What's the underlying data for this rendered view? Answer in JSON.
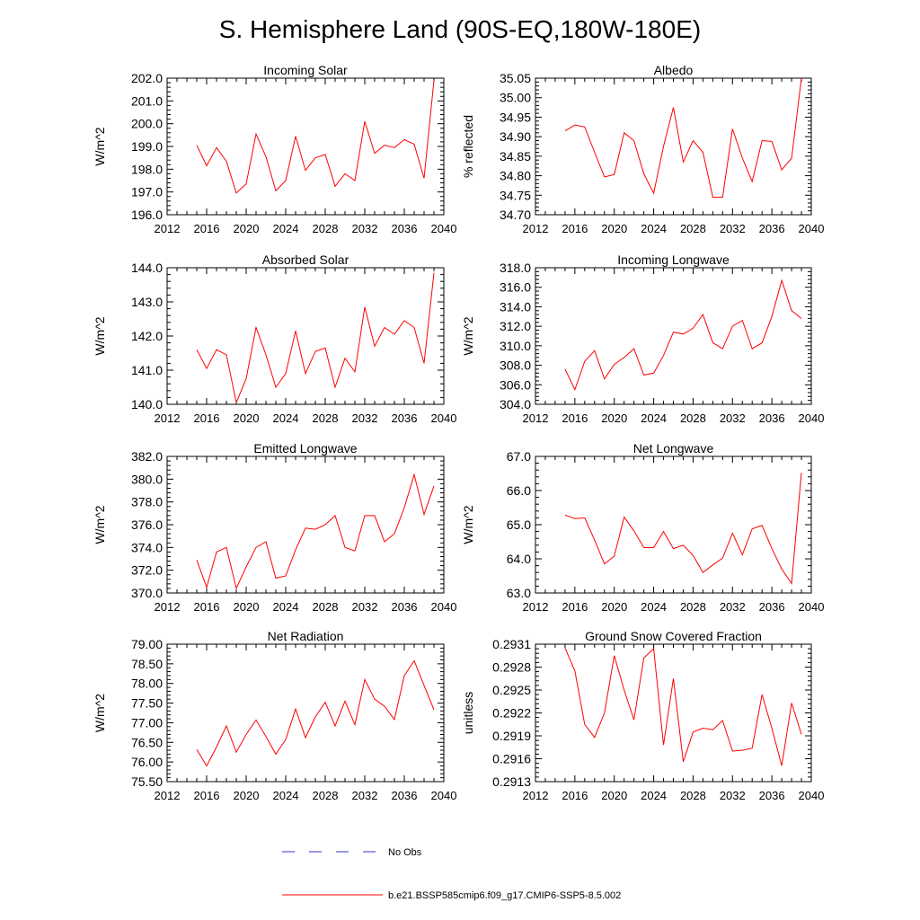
{
  "figure": {
    "title": "S. Hemisphere Land (90S-EQ,180W-180E)",
    "legend": [
      {
        "label": "No Obs",
        "color": "#3333cc",
        "dash": "dashed"
      },
      {
        "label": "b.e21.BSSP585cmip6.f09_g17.CMIP6-SSP5-8.5.002",
        "color": "#ff0000",
        "dash": "solid"
      }
    ]
  },
  "chart_data": [
    {
      "type": "line",
      "title": "Incoming Solar",
      "ylabel": "W/m^2",
      "xlabel": "",
      "xlim": [
        2012,
        2040
      ],
      "ylim": [
        196.0,
        202.0
      ],
      "xticks": [
        2012,
        2016,
        2020,
        2024,
        2028,
        2032,
        2036,
        2040
      ],
      "yticks": [
        "196.0",
        "197.0",
        "198.0",
        "199.0",
        "200.0",
        "201.0",
        "202.0"
      ],
      "x": [
        2015,
        2016,
        2017,
        2018,
        2019,
        2020,
        2021,
        2022,
        2023,
        2024,
        2025,
        2026,
        2027,
        2028,
        2029,
        2030,
        2031,
        2032,
        2033,
        2034,
        2035,
        2036,
        2037,
        2038,
        2039
      ],
      "series": [
        {
          "name": "b.e21.BSSP585cmip6.f09_g17.CMIP6-SSP5-8.5.002",
          "color": "#ff0000",
          "values": [
            199.05,
            198.15,
            198.95,
            198.35,
            196.95,
            197.35,
            199.55,
            198.55,
            197.05,
            197.5,
            199.45,
            197.95,
            198.5,
            198.65,
            197.25,
            197.8,
            197.5,
            200.1,
            198.7,
            199.05,
            198.95,
            199.3,
            199.1,
            197.6,
            201.9
          ]
        }
      ]
    },
    {
      "type": "line",
      "title": "Albedo",
      "ylabel": "% reflected",
      "xlabel": "",
      "xlim": [
        2012,
        2040
      ],
      "ylim": [
        34.7,
        35.05
      ],
      "xticks": [
        2012,
        2016,
        2020,
        2024,
        2028,
        2032,
        2036,
        2040
      ],
      "yticks": [
        "34.70",
        "34.75",
        "34.80",
        "34.85",
        "34.90",
        "34.95",
        "35.00",
        "35.05"
      ],
      "x": [
        2015,
        2016,
        2017,
        2018,
        2019,
        2020,
        2021,
        2022,
        2023,
        2024,
        2025,
        2026,
        2027,
        2028,
        2029,
        2030,
        2031,
        2032,
        2033,
        2034,
        2035,
        2036,
        2037,
        2038,
        2039
      ],
      "series": [
        {
          "name": "b.e21.BSSP585cmip6.f09_g17.CMIP6-SSP5-8.5.002",
          "color": "#ff0000",
          "values": [
            34.915,
            34.93,
            34.925,
            34.86,
            34.797,
            34.803,
            34.91,
            34.89,
            34.805,
            34.755,
            34.875,
            34.975,
            34.835,
            34.89,
            34.86,
            34.745,
            34.745,
            34.92,
            34.845,
            34.785,
            34.89,
            34.888,
            34.815,
            34.845,
            35.05
          ]
        }
      ]
    },
    {
      "type": "line",
      "title": "Absorbed Solar",
      "ylabel": "W/m^2",
      "xlabel": "",
      "xlim": [
        2012,
        2040
      ],
      "ylim": [
        140.0,
        144.0
      ],
      "xticks": [
        2012,
        2016,
        2020,
        2024,
        2028,
        2032,
        2036,
        2040
      ],
      "yticks": [
        "140.0",
        "141.0",
        "142.0",
        "143.0",
        "144.0"
      ],
      "x": [
        2015,
        2016,
        2017,
        2018,
        2019,
        2020,
        2021,
        2022,
        2023,
        2024,
        2025,
        2026,
        2027,
        2028,
        2029,
        2030,
        2031,
        2032,
        2033,
        2034,
        2035,
        2036,
        2037,
        2038,
        2039
      ],
      "series": [
        {
          "name": "b.e21.BSSP585cmip6.f09_g17.CMIP6-SSP5-8.5.002",
          "color": "#ff0000",
          "values": [
            141.6,
            141.05,
            141.6,
            141.45,
            140.05,
            140.75,
            142.25,
            141.45,
            140.5,
            140.9,
            142.15,
            140.9,
            141.55,
            141.65,
            140.5,
            141.35,
            140.95,
            142.85,
            141.7,
            142.25,
            142.05,
            142.45,
            142.25,
            141.2,
            143.85
          ]
        }
      ]
    },
    {
      "type": "line",
      "title": "Incoming Longwave",
      "ylabel": "W/m^2",
      "xlabel": "",
      "xlim": [
        2012,
        2040
      ],
      "ylim": [
        304.0,
        318.0
      ],
      "xticks": [
        2012,
        2016,
        2020,
        2024,
        2028,
        2032,
        2036,
        2040
      ],
      "yticks": [
        "304.0",
        "306.0",
        "308.0",
        "310.0",
        "312.0",
        "314.0",
        "316.0",
        "318.0"
      ],
      "x": [
        2015,
        2016,
        2017,
        2018,
        2019,
        2020,
        2021,
        2022,
        2023,
        2024,
        2025,
        2026,
        2027,
        2028,
        2029,
        2030,
        2031,
        2032,
        2033,
        2034,
        2035,
        2036,
        2037,
        2038,
        2039
      ],
      "series": [
        {
          "name": "b.e21.BSSP585cmip6.f09_g17.CMIP6-SSP5-8.5.002",
          "color": "#ff0000",
          "values": [
            307.6,
            305.5,
            308.4,
            309.5,
            306.6,
            308.1,
            308.8,
            309.7,
            307.0,
            307.2,
            309.0,
            311.4,
            311.2,
            311.8,
            313.2,
            310.3,
            309.7,
            312.0,
            312.6,
            309.7,
            310.3,
            313.0,
            316.7,
            313.6,
            312.8
          ]
        }
      ]
    },
    {
      "type": "line",
      "title": "Emitted Longwave",
      "ylabel": "W/m^2",
      "xlabel": "",
      "xlim": [
        2012,
        2040
      ],
      "ylim": [
        370.0,
        382.0
      ],
      "xticks": [
        2012,
        2016,
        2020,
        2024,
        2028,
        2032,
        2036,
        2040
      ],
      "yticks": [
        "370.0",
        "372.0",
        "374.0",
        "376.0",
        "378.0",
        "380.0",
        "382.0"
      ],
      "x": [
        2015,
        2016,
        2017,
        2018,
        2019,
        2020,
        2021,
        2022,
        2023,
        2024,
        2025,
        2026,
        2027,
        2028,
        2029,
        2030,
        2031,
        2032,
        2033,
        2034,
        2035,
        2036,
        2037,
        2038,
        2039
      ],
      "series": [
        {
          "name": "b.e21.BSSP585cmip6.f09_g17.CMIP6-SSP5-8.5.002",
          "color": "#ff0000",
          "values": [
            372.9,
            370.5,
            373.6,
            374.0,
            370.4,
            372.3,
            374.0,
            374.5,
            371.3,
            371.5,
            373.8,
            375.7,
            375.6,
            376.0,
            376.8,
            374.0,
            373.7,
            376.8,
            376.8,
            374.5,
            375.2,
            377.5,
            380.4,
            376.9,
            379.4
          ]
        }
      ]
    },
    {
      "type": "line",
      "title": "Net Longwave",
      "ylabel": "W/m^2",
      "xlabel": "",
      "xlim": [
        2012,
        2040
      ],
      "ylim": [
        63.0,
        67.0
      ],
      "xticks": [
        2012,
        2016,
        2020,
        2024,
        2028,
        2032,
        2036,
        2040
      ],
      "yticks": [
        "63.0",
        "64.0",
        "65.0",
        "66.0",
        "67.0"
      ],
      "x": [
        2015,
        2016,
        2017,
        2018,
        2019,
        2020,
        2021,
        2022,
        2023,
        2024,
        2025,
        2026,
        2027,
        2028,
        2029,
        2030,
        2031,
        2032,
        2033,
        2034,
        2035,
        2036,
        2037,
        2038,
        2039
      ],
      "series": [
        {
          "name": "b.e21.BSSP585cmip6.f09_g17.CMIP6-SSP5-8.5.002",
          "color": "#ff0000",
          "values": [
            65.28,
            65.18,
            65.2,
            64.55,
            63.85,
            64.08,
            65.22,
            64.82,
            64.33,
            64.33,
            64.8,
            64.3,
            64.4,
            64.1,
            63.6,
            63.82,
            64.02,
            64.75,
            64.12,
            64.88,
            64.98,
            64.3,
            63.7,
            63.28,
            66.52
          ]
        }
      ]
    },
    {
      "type": "line",
      "title": "Net Radiation",
      "ylabel": "W/m^2",
      "xlabel": "",
      "xlim": [
        2012,
        2040
      ],
      "ylim": [
        75.5,
        79.0
      ],
      "xticks": [
        2012,
        2016,
        2020,
        2024,
        2028,
        2032,
        2036,
        2040
      ],
      "yticks": [
        "75.50",
        "76.00",
        "76.50",
        "77.00",
        "77.50",
        "78.00",
        "78.50",
        "79.00"
      ],
      "x": [
        2015,
        2016,
        2017,
        2018,
        2019,
        2020,
        2021,
        2022,
        2023,
        2024,
        2025,
        2026,
        2027,
        2028,
        2029,
        2030,
        2031,
        2032,
        2033,
        2034,
        2035,
        2036,
        2037,
        2038,
        2039
      ],
      "series": [
        {
          "name": "b.e21.BSSP585cmip6.f09_g17.CMIP6-SSP5-8.5.002",
          "color": "#ff0000",
          "values": [
            76.32,
            75.9,
            76.38,
            76.92,
            76.25,
            76.7,
            77.07,
            76.65,
            76.2,
            76.57,
            77.35,
            76.62,
            77.15,
            77.52,
            76.92,
            77.55,
            76.95,
            78.1,
            77.6,
            77.42,
            77.08,
            78.2,
            78.58,
            77.95,
            77.33
          ]
        }
      ]
    },
    {
      "type": "line",
      "title": "Ground Snow Covered Fraction",
      "ylabel": "unitless",
      "xlabel": "",
      "xlim": [
        2012,
        2040
      ],
      "ylim": [
        0.2913,
        0.2931
      ],
      "xticks": [
        2012,
        2016,
        2020,
        2024,
        2028,
        2032,
        2036,
        2040
      ],
      "yticks": [
        "0.2913",
        "0.2916",
        "0.2919",
        "0.2922",
        "0.2925",
        "0.2928",
        "0.2931"
      ],
      "x": [
        2015,
        2016,
        2017,
        2018,
        2019,
        2020,
        2021,
        2022,
        2023,
        2024,
        2025,
        2026,
        2027,
        2028,
        2029,
        2030,
        2031,
        2032,
        2033,
        2034,
        2035,
        2036,
        2037,
        2038,
        2039
      ],
      "series": [
        {
          "name": "b.e21.BSSP585cmip6.f09_g17.CMIP6-SSP5-8.5.002",
          "color": "#ff0000",
          "values": [
            0.29305,
            0.29275,
            0.29205,
            0.29188,
            0.2922,
            0.29295,
            0.2925,
            0.29211,
            0.29292,
            0.29304,
            0.29178,
            0.29265,
            0.29156,
            0.29195,
            0.292,
            0.29198,
            0.2921,
            0.2917,
            0.29171,
            0.29174,
            0.29244,
            0.292,
            0.29151,
            0.29233,
            0.29192
          ]
        }
      ]
    }
  ]
}
